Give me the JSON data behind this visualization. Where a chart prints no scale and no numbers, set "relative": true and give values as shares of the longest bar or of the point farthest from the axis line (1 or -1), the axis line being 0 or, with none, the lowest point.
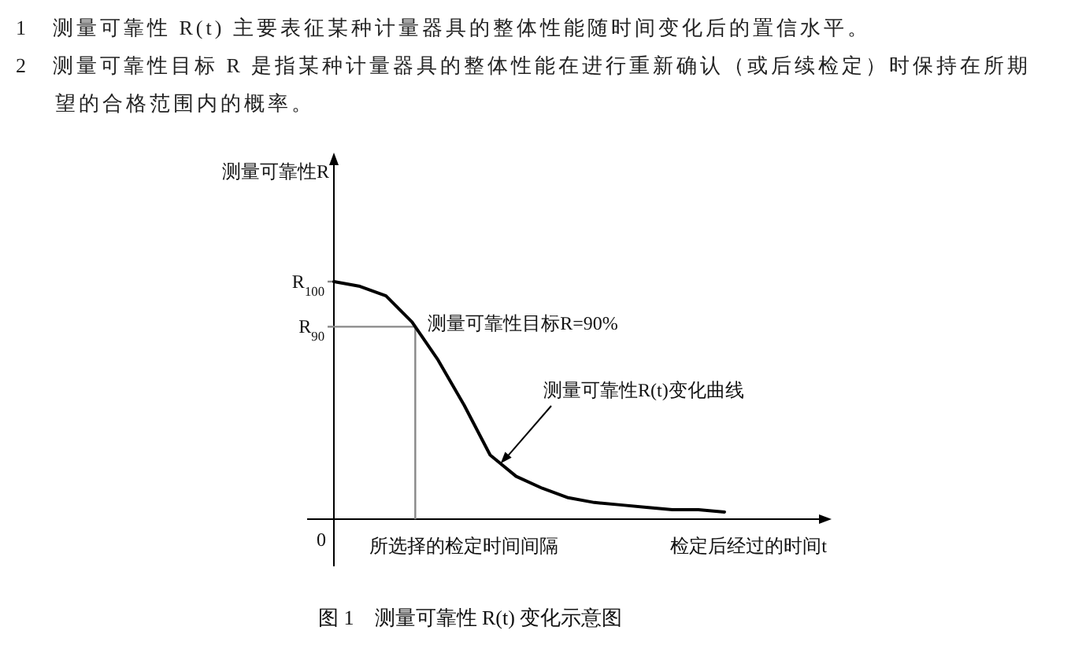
{
  "chart_data": {
    "type": "line",
    "title": "图 1　测量可靠性 R(t) 变化示意图",
    "xlabel": "检定后经过的时间t",
    "relative": true,
    "categories": [
      null,
      null,
      null,
      null,
      null,
      null,
      null,
      null,
      null,
      null,
      null,
      null,
      null,
      null,
      null,
      null
    ],
    "series": [
      {
        "color": "#000000",
        "values": [
          1,
          0.98,
          0.94,
          0.83,
          0.67,
          0.48,
          0.27,
          0.18,
          0.13,
          0.09,
          0.07,
          0.06,
          0.05,
          0.04,
          0.04,
          0.03
        ]
      }
    ],
    "ref_lines": [
      {
        "axis": "y",
        "value": 1,
        "label": "R$_{100}$",
        "color": "#888888"
      },
      {
        "axis": "y",
        "value": 0.81,
        "label": "R$_{90}$",
        "color": "#888888"
      }
    ],
    "annotations": [
      "1　测量可靠性 R(t) 主要表征某种计量器具的整体性能随时间变化后的置信水平。",
      "2　测量可靠性目标 R 是指某种计量器具的整体性能在进行重新确认（或后续检定）时保持在所期望的合格范围内的概率。",
      "0",
      "测量可靠性目标R=90%",
      "测量可靠性R(t)变化曲线",
      "所选择的检定时间间隔",
      "测量可靠性R"
    ]
  }
}
